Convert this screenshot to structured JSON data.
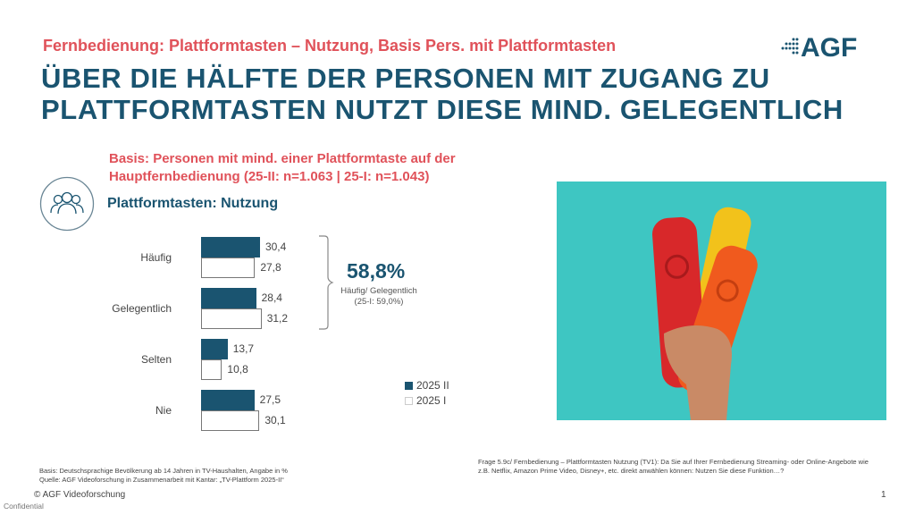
{
  "header": {
    "kicker": "Fernbedienung: Plattformtasten – Nutzung, Basis Pers. mit Plattformtasten",
    "title_line1": "ÜBER DIE HÄLFTE DER PERSONEN MIT ZUGANG ZU",
    "title_line2": "PLATTFORMTASTEN NUTZT DIESE MIND. GELEGENTLICH",
    "logo_text": "AGF"
  },
  "basis": {
    "line1": "Basis: Personen mit mind. einer Plattformtaste auf der",
    "line2": "Hauptfernbedienung (25-II: n=1.063 | 25-I: n=1.043)"
  },
  "icons": {
    "chart_icon": "people-group-icon"
  },
  "colors": {
    "primary": "#1a5470",
    "accent": "#e0525a",
    "photo_bg": "#3ec6c2"
  },
  "chart_data": {
    "type": "bar",
    "orientation": "horizontal",
    "title": "Plattformtasten: Nutzung",
    "categories": [
      "Häufig",
      "Gelegentlich",
      "Selten",
      "Nie"
    ],
    "series": [
      {
        "name": "2025 II",
        "values": [
          30.4,
          28.4,
          13.7,
          27.5
        ],
        "labels": [
          "30,4",
          "28,4",
          "13,7",
          "27,5"
        ],
        "color": "#1a5470"
      },
      {
        "name": "2025 I",
        "values": [
          27.8,
          31.2,
          10.8,
          30.1
        ],
        "labels": [
          "27,8",
          "31,2",
          "10,8",
          "30,1"
        ],
        "color": "#ffffff"
      }
    ],
    "legend_position": "bottom-right",
    "annotation": {
      "value": "58,8%",
      "label": "Häufig/ Gelegentlich",
      "previous": "(25-I: 59,0%)"
    }
  },
  "footer": {
    "basis": "Basis: Deutschsprachige Bevölkerung ab 14 Jahren in TV-Haushalten, Angabe in %",
    "source": "Quelle: AGF Videoforschung in Zusammenarbeit mit Kantar: „TV-Plattform 2025-II“",
    "question": "Frage 5.9c/ Fernbedienung – Plattformtasten Nutzung (TV1): Da Sie auf Ihrer Fernbedienung Streaming- oder Online-Angebote wie z.B. Netflix, Amazon Prime Video, Disney+, etc. direkt anwählen können: Nutzen Sie diese Funktion…?",
    "copyright": "© AGF Videoforschung",
    "confidential": "Confidential",
    "page": "1"
  }
}
